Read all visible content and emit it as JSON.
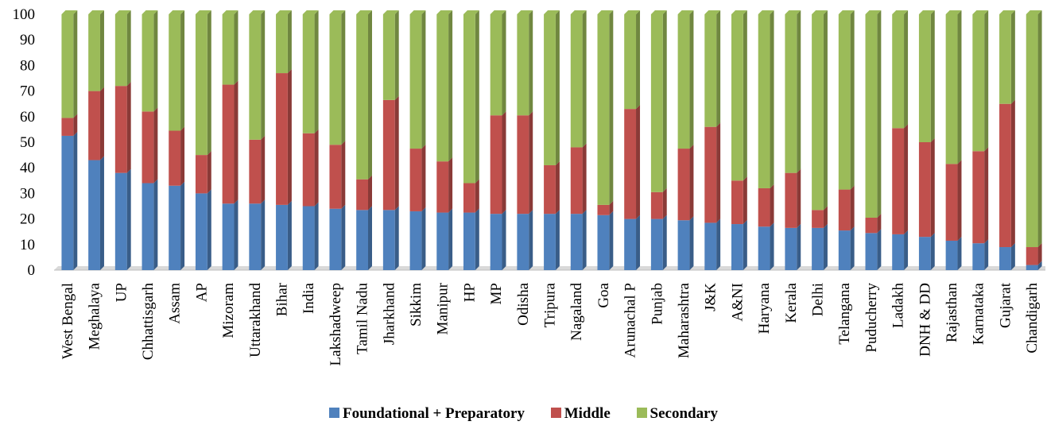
{
  "chart_data": {
    "type": "bar",
    "stacked": true,
    "title": "",
    "xlabel": "",
    "ylabel": "",
    "ylim": [
      0,
      100
    ],
    "yticks": [
      0,
      10,
      20,
      30,
      40,
      50,
      60,
      70,
      80,
      90,
      100
    ],
    "grid": false,
    "legend_position": "bottom",
    "categories": [
      "West Bengal",
      "Meghalaya",
      "UP",
      "Chhattisgarh",
      "Assam",
      "AP",
      "Mizoram",
      "Uttarakhand",
      "Bihar",
      "India",
      "Lakshadweep",
      "Tamil Nadu",
      "Jharkhand",
      "Sikkim",
      "Manipur",
      "HP",
      "MP",
      "Odisha",
      "Tripura",
      "Nagaland",
      "Goa",
      "Arunachal P",
      "Punjab",
      "Maharashtra",
      "J&K",
      "A&NI",
      "Haryana",
      "Kerala",
      "Delhi",
      "Telangana",
      "Puducherry",
      "Ladakh",
      "DNH & DD",
      "Rajasthan",
      "Karnataka",
      "Gujarat",
      "Chandigarh"
    ],
    "series": [
      {
        "name": "Foundational + Preparatory",
        "color": "#4f81bd",
        "values": [
          52.5,
          43,
          38,
          34,
          33,
          30,
          26,
          26,
          25.5,
          25,
          24,
          23.5,
          23.5,
          23,
          22.5,
          22.5,
          22,
          22,
          22,
          22,
          21.5,
          20,
          20,
          19.5,
          18.5,
          18,
          17,
          16.5,
          16.5,
          15.5,
          14.5,
          14,
          13,
          11.5,
          10.5,
          9,
          2
        ]
      },
      {
        "name": "Middle",
        "color": "#c0504d",
        "values": [
          7,
          27,
          34,
          28,
          21.5,
          15,
          46.5,
          25,
          51.5,
          28.5,
          25,
          12,
          43,
          24.5,
          20,
          11.5,
          38.5,
          38.5,
          19,
          26,
          4,
          43,
          10.5,
          28,
          37.5,
          17,
          15,
          21.5,
          7,
          16,
          6,
          41.5,
          37,
          30,
          36,
          56,
          7
        ]
      },
      {
        "name": "Secondary",
        "color": "#9bbb59",
        "values": [
          40.5,
          30,
          28,
          38,
          45.5,
          55,
          27.5,
          49,
          23,
          46.5,
          51,
          64.5,
          33.5,
          52.5,
          57.5,
          66,
          39.5,
          39.5,
          59,
          52,
          74.5,
          37,
          69.5,
          52.5,
          44,
          65,
          68,
          62,
          76.5,
          68.5,
          79.5,
          44.5,
          50,
          58.5,
          53.5,
          35,
          91
        ]
      }
    ]
  }
}
